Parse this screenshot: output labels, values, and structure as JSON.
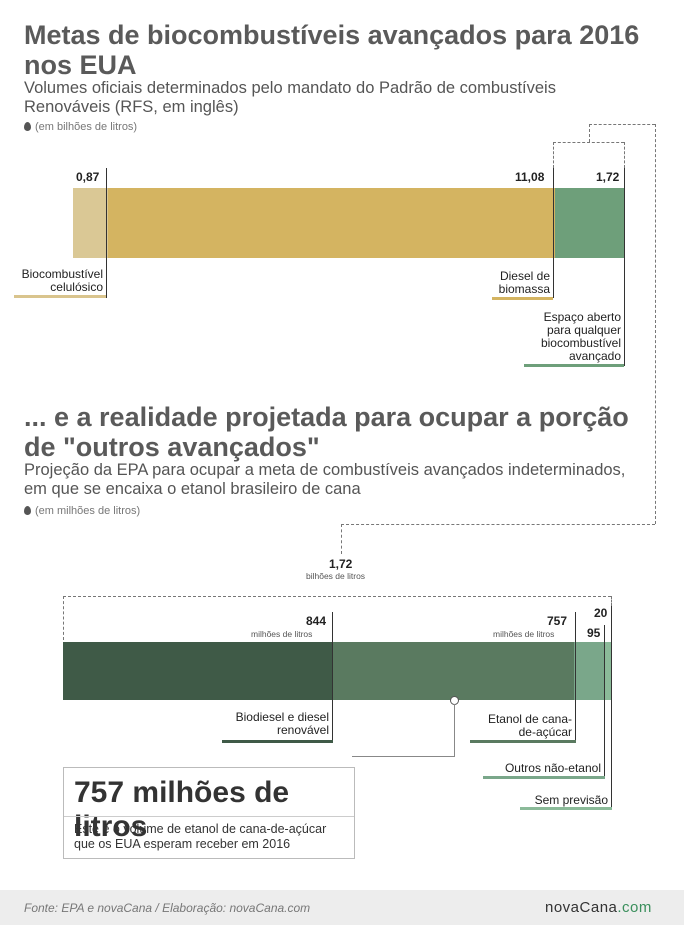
{
  "title": "Metas de biocombustíveis avançados para 2016 nos EUA",
  "subtitle": "Volumes oficiais determinados pelo mandato do Padrão de combustíveis Renováveis (RFS, em inglês)",
  "unit_top": "(em bilhões de litros)",
  "section2_title": "... e a realidade projetada para ocupar a porção de \"outros avançados\"",
  "section2_subtitle": "Projeção da EPA para ocupar a meta de combustíveis avançados indeterminados, em que se encaixa o etanol brasileiro de cana",
  "unit_bottom": "(em milhões de litros)",
  "total_value": "1,72",
  "total_unit": "bilhões de litros",
  "callout": {
    "big": "757 milhões de litros",
    "text": "Este é o volume de etanol de cana-de-açúcar que os EUA esperam receber em 2016"
  },
  "footer": {
    "source": "Fonte: EPA e novaCana / Elaboração: novaCana.com",
    "brand_a": "nova",
    "brand_b": "Cana",
    "brand_c": ".com"
  },
  "chart_data": [
    {
      "type": "bar",
      "orientation": "horizontal-stacked",
      "unit": "bilhões de litros",
      "series": [
        {
          "name": "Biocombustível celulósico",
          "value": 0.87,
          "value_label": "0,87",
          "color": "#dac895"
        },
        {
          "name": "Diesel de biomassa",
          "value": 11.08,
          "value_label": "11,08",
          "color": "#d4b461"
        },
        {
          "name": "Espaço aberto para qualquer biocombustível avançado",
          "value": 1.72,
          "value_label": "1,72",
          "color": "#6e9f7a"
        }
      ]
    },
    {
      "type": "bar",
      "orientation": "horizontal-stacked",
      "unit": "milhões de litros",
      "series": [
        {
          "name": "Biodiesel e diesel renovável",
          "value": 844,
          "value_label": "844",
          "value_unit": "milhões de litros",
          "color": "#3f5a47"
        },
        {
          "name": "Etanol de cana-de-açúcar",
          "value": 757,
          "value_label": "757",
          "value_unit": "milhões de litros",
          "color": "#5a7a60"
        },
        {
          "name": "Outros não-etanol",
          "value": 95,
          "value_label": "95",
          "color": "#7aa78a"
        },
        {
          "name": "Sem previsão",
          "value": 20,
          "value_label": "20",
          "color": "#8bba99"
        }
      ]
    }
  ]
}
